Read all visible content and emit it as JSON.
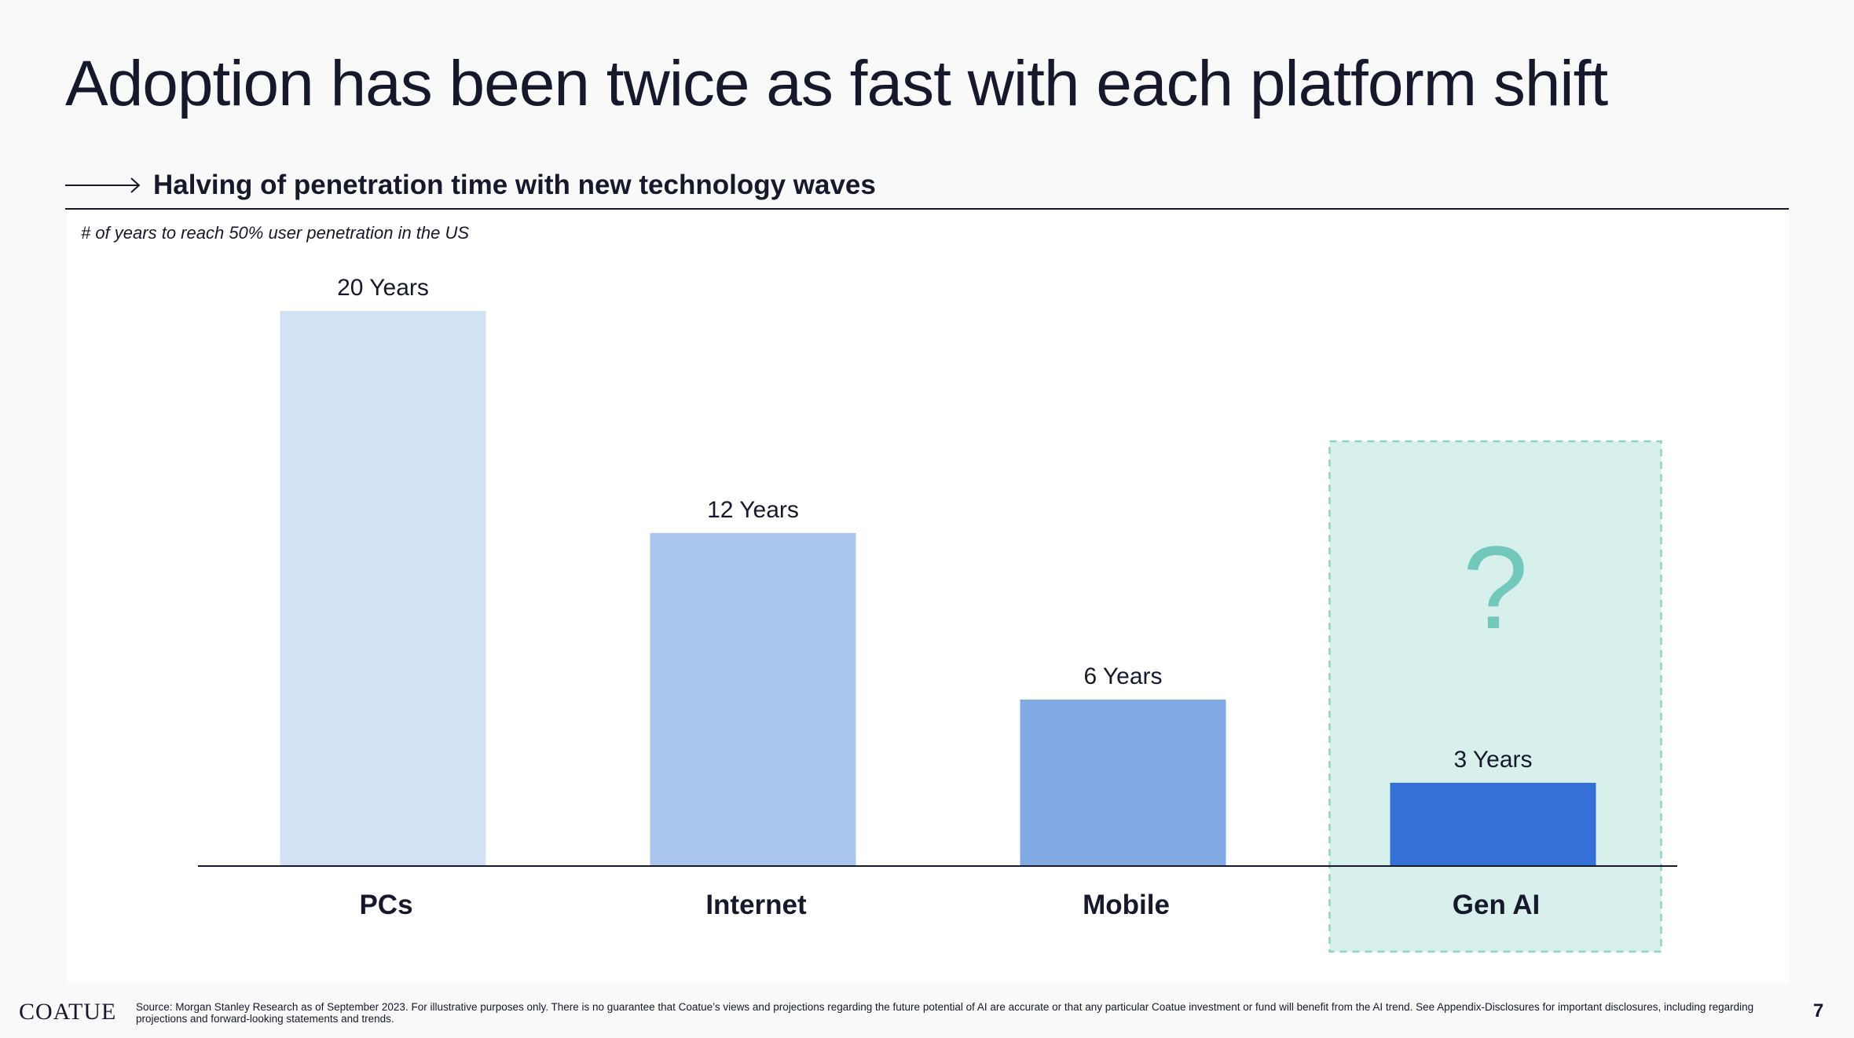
{
  "slide": {
    "title": "Adoption has been twice as fast with each platform shift",
    "subtitle": "Halving of penetration time with new technology waves",
    "page_number": "7",
    "logo_text": "COATUE",
    "source_note": "Source: Morgan Stanley Research as of September 2023. For illustrative purposes only. There is no guarantee that Coatue’s views and projections regarding the future potential of AI are accurate or that any particular Coatue investment or fund will benefit from the AI trend. See Appendix-Disclosures for important disclosures, including regarding projections and forward-looking statements and trends."
  },
  "chart_data": {
    "type": "bar",
    "note": "# of years to reach 50% user penetration in the US",
    "categories": [
      "PCs",
      "Internet",
      "Mobile",
      "Gen AI"
    ],
    "values": [
      20,
      12,
      6,
      3
    ],
    "data_labels": [
      "20 Years",
      "12 Years",
      "6 Years",
      "3 Years"
    ],
    "bar_colors": [
      "#d3e1f5",
      "#aac6ee",
      "#81a9e4",
      "#3570d6"
    ],
    "highlight": {
      "category": "Gen AI",
      "symbol": "?",
      "fill": "#d7f0ec",
      "border": "#8fd2c6",
      "symbol_color": "#72c9bb"
    },
    "ylim": [
      0,
      20
    ],
    "grid": false,
    "axis_color": "#16192b"
  }
}
